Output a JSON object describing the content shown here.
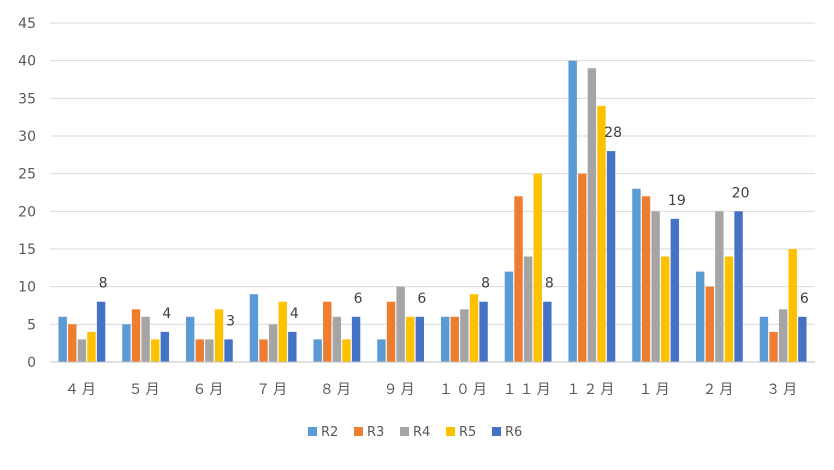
{
  "chart_data": {
    "type": "bar",
    "title": "",
    "xlabel": "",
    "ylabel": "",
    "ylim": [
      0,
      45
    ],
    "yticks": [
      0,
      5,
      10,
      15,
      20,
      25,
      30,
      35,
      40,
      45
    ],
    "grid": true,
    "legend_position": "bottom",
    "categories": [
      "４月",
      "５月",
      "６月",
      "７月",
      "８月",
      "９月",
      "１０月",
      "１１月",
      "１２月",
      "１月",
      "２月",
      "３月"
    ],
    "series": [
      {
        "name": "R2",
        "color": "#5B9BD5",
        "values": [
          6,
          5,
          6,
          9,
          3,
          3,
          6,
          12,
          40,
          23,
          12,
          6
        ]
      },
      {
        "name": "R3",
        "color": "#ED7D31",
        "values": [
          5,
          7,
          3,
          3,
          8,
          8,
          6,
          22,
          25,
          22,
          10,
          4
        ]
      },
      {
        "name": "R4",
        "color": "#A5A5A5",
        "values": [
          3,
          6,
          3,
          5,
          6,
          10,
          7,
          14,
          39,
          20,
          20,
          7
        ]
      },
      {
        "name": "R5",
        "color": "#FFC000",
        "values": [
          4,
          3,
          7,
          8,
          3,
          6,
          9,
          25,
          34,
          14,
          14,
          15
        ]
      },
      {
        "name": "R6",
        "color": "#4472C4",
        "values": [
          8,
          4,
          3,
          4,
          6,
          6,
          8,
          8,
          28,
          19,
          20,
          6
        ]
      }
    ],
    "data_labels": {
      "series": "R6",
      "values": [
        "8",
        "4",
        "3",
        "4",
        "6",
        "6",
        "8",
        "8",
        "28",
        "19",
        "20",
        "6"
      ]
    }
  }
}
